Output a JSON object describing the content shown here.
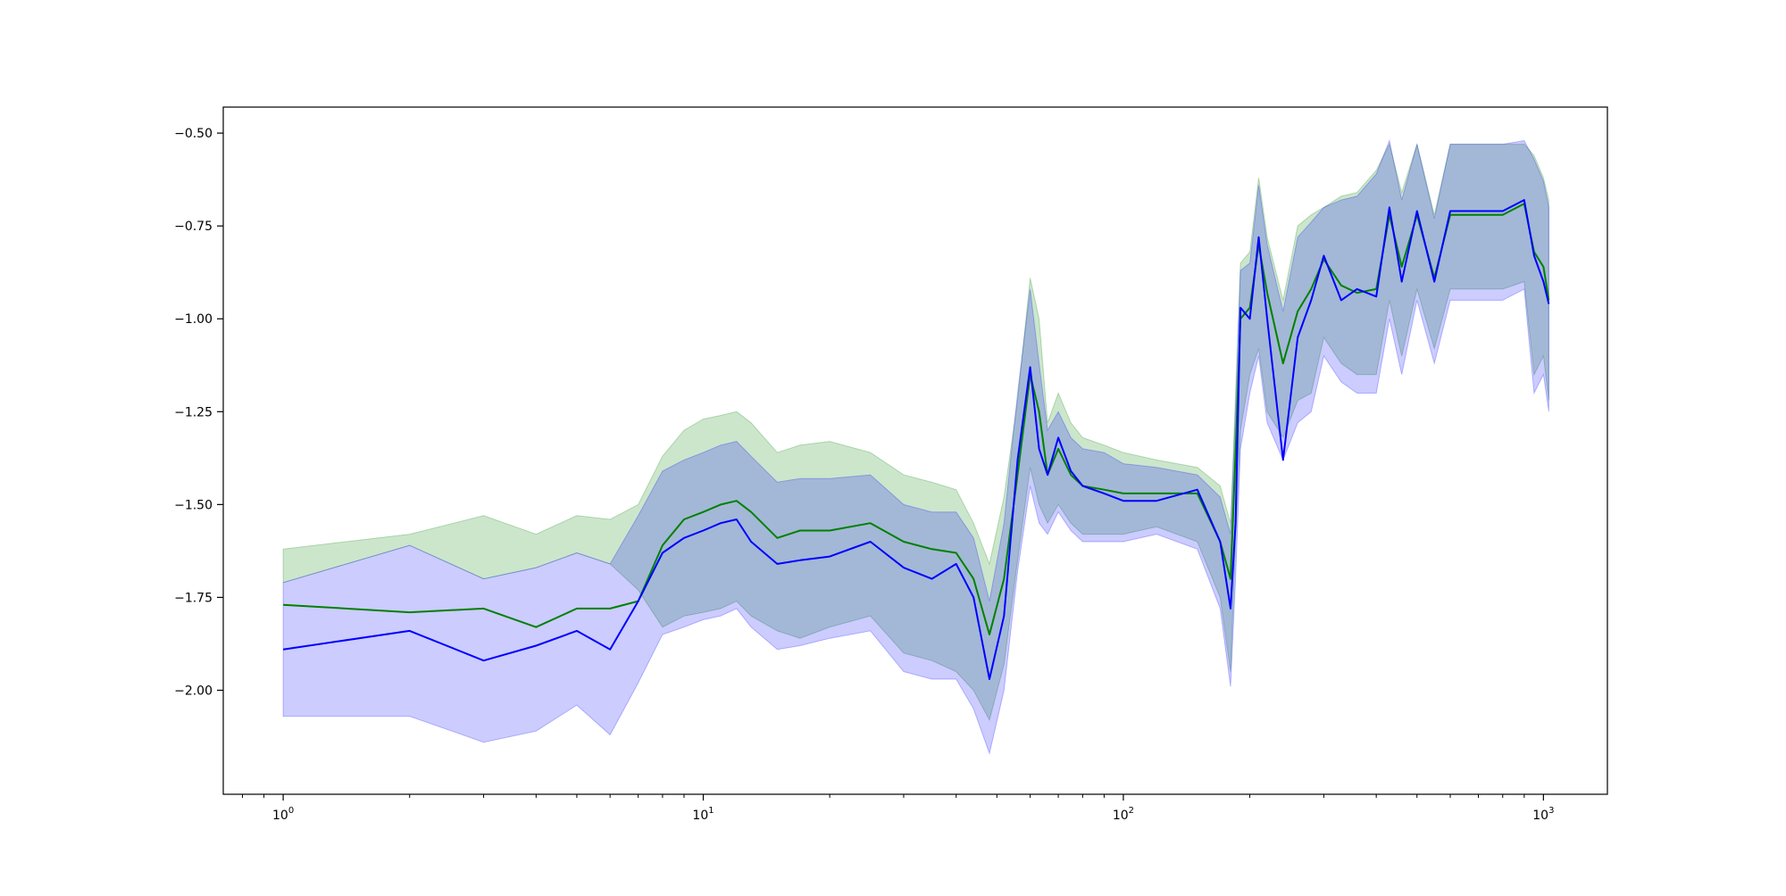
{
  "chart_data": {
    "type": "line",
    "title": "",
    "xlabel": "",
    "ylabel": "",
    "xscale": "log",
    "xlim": [
      0.72,
      1420
    ],
    "ylim": [
      -2.28,
      -0.43
    ],
    "grid": false,
    "legend": "none",
    "x_ticks": [
      {
        "value": 1,
        "base": "10",
        "exp": "0"
      },
      {
        "value": 10,
        "base": "10",
        "exp": "1"
      },
      {
        "value": 100,
        "base": "10",
        "exp": "2"
      },
      {
        "value": 1000,
        "base": "10",
        "exp": "3"
      }
    ],
    "y_ticks": [
      {
        "value": -0.5,
        "label": "−0.50"
      },
      {
        "value": -0.75,
        "label": "−0.75"
      },
      {
        "value": -1.0,
        "label": "−1.00"
      },
      {
        "value": -1.25,
        "label": "−1.25"
      },
      {
        "value": -1.5,
        "label": "−1.50"
      },
      {
        "value": -1.75,
        "label": "−1.75"
      },
      {
        "value": -2.0,
        "label": "−2.00"
      }
    ],
    "series": [
      {
        "color": "#008000",
        "band_color": "#008000",
        "band_opacity": 0.2,
        "x": [
          1,
          2,
          3,
          4,
          5,
          6,
          7,
          8,
          9,
          10,
          11,
          12,
          13,
          15,
          17,
          20,
          25,
          30,
          35,
          40,
          44,
          48,
          52,
          56,
          60,
          63,
          66,
          70,
          75,
          80,
          90,
          100,
          120,
          150,
          170,
          180,
          185,
          190,
          200,
          210,
          220,
          240,
          260,
          280,
          300,
          330,
          360,
          400,
          430,
          460,
          500,
          550,
          600,
          700,
          800,
          900,
          950,
          1000,
          1030
        ],
        "y": [
          -1.77,
          -1.79,
          -1.78,
          -1.83,
          -1.78,
          -1.78,
          -1.76,
          -1.61,
          -1.54,
          -1.52,
          -1.5,
          -1.49,
          -1.52,
          -1.59,
          -1.57,
          -1.57,
          -1.55,
          -1.6,
          -1.62,
          -1.63,
          -1.7,
          -1.85,
          -1.7,
          -1.42,
          -1.15,
          -1.25,
          -1.42,
          -1.35,
          -1.42,
          -1.45,
          -1.46,
          -1.47,
          -1.47,
          -1.47,
          -1.6,
          -1.7,
          -1.36,
          -1.0,
          -0.97,
          -0.8,
          -0.93,
          -1.12,
          -0.98,
          -0.92,
          -0.84,
          -0.91,
          -0.93,
          -0.92,
          -0.72,
          -0.86,
          -0.72,
          -0.89,
          -0.72,
          -0.72,
          -0.72,
          -0.69,
          -0.82,
          -0.86,
          -0.95
        ],
        "upper": [
          -1.62,
          -1.58,
          -1.53,
          -1.58,
          -1.53,
          -1.54,
          -1.5,
          -1.37,
          -1.3,
          -1.27,
          -1.26,
          -1.25,
          -1.28,
          -1.36,
          -1.34,
          -1.33,
          -1.36,
          -1.42,
          -1.44,
          -1.46,
          -1.55,
          -1.66,
          -1.48,
          -1.22,
          -0.89,
          -1.0,
          -1.28,
          -1.2,
          -1.28,
          -1.32,
          -1.34,
          -1.36,
          -1.38,
          -1.4,
          -1.45,
          -1.55,
          -1.2,
          -0.85,
          -0.82,
          -0.62,
          -0.78,
          -0.95,
          -0.75,
          -0.72,
          -0.7,
          -0.67,
          -0.66,
          -0.6,
          -0.53,
          -0.66,
          -0.53,
          -0.72,
          -0.53,
          -0.53,
          -0.53,
          -0.53,
          -0.56,
          -0.62,
          -0.68
        ],
        "lower": [
          -1.71,
          -1.61,
          -1.7,
          -1.67,
          -1.63,
          -1.66,
          -1.73,
          -1.83,
          -1.8,
          -1.79,
          -1.78,
          -1.76,
          -1.8,
          -1.84,
          -1.86,
          -1.83,
          -1.8,
          -1.9,
          -1.92,
          -1.95,
          -2.0,
          -2.08,
          -1.93,
          -1.65,
          -1.4,
          -1.5,
          -1.55,
          -1.5,
          -1.55,
          -1.58,
          -1.58,
          -1.58,
          -1.56,
          -1.6,
          -1.75,
          -1.95,
          -1.6,
          -1.3,
          -1.15,
          -1.08,
          -1.25,
          -1.32,
          -1.22,
          -1.2,
          -1.05,
          -1.12,
          -1.15,
          -1.15,
          -0.95,
          -1.1,
          -0.92,
          -1.08,
          -0.92,
          -0.92,
          -0.92,
          -0.9,
          -1.15,
          -1.1,
          -1.22
        ]
      },
      {
        "color": "#0000ff",
        "band_color": "#0000ff",
        "band_opacity": 0.2,
        "x": [
          1,
          2,
          3,
          4,
          5,
          6,
          7,
          8,
          9,
          10,
          11,
          12,
          13,
          15,
          17,
          20,
          25,
          30,
          35,
          40,
          44,
          48,
          52,
          56,
          60,
          63,
          66,
          70,
          75,
          80,
          90,
          100,
          120,
          150,
          170,
          180,
          185,
          190,
          200,
          210,
          220,
          240,
          260,
          280,
          300,
          330,
          360,
          400,
          430,
          460,
          500,
          550,
          600,
          700,
          800,
          900,
          950,
          1000,
          1030
        ],
        "y": [
          -1.89,
          -1.84,
          -1.92,
          -1.88,
          -1.84,
          -1.89,
          -1.76,
          -1.63,
          -1.59,
          -1.57,
          -1.55,
          -1.54,
          -1.6,
          -1.66,
          -1.65,
          -1.64,
          -1.6,
          -1.67,
          -1.7,
          -1.66,
          -1.75,
          -1.97,
          -1.8,
          -1.38,
          -1.13,
          -1.35,
          -1.42,
          -1.32,
          -1.41,
          -1.45,
          -1.47,
          -1.49,
          -1.49,
          -1.46,
          -1.6,
          -1.78,
          -1.55,
          -0.97,
          -1.0,
          -0.78,
          -1.0,
          -1.38,
          -1.05,
          -0.95,
          -0.83,
          -0.95,
          -0.92,
          -0.94,
          -0.7,
          -0.9,
          -0.71,
          -0.9,
          -0.71,
          -0.71,
          -0.71,
          -0.68,
          -0.83,
          -0.9,
          -0.96
        ],
        "upper": [
          -1.71,
          -1.61,
          -1.7,
          -1.67,
          -1.63,
          -1.66,
          -1.53,
          -1.41,
          -1.38,
          -1.36,
          -1.34,
          -1.33,
          -1.37,
          -1.44,
          -1.43,
          -1.43,
          -1.42,
          -1.5,
          -1.52,
          -1.52,
          -1.59,
          -1.76,
          -1.55,
          -1.2,
          -0.92,
          -1.12,
          -1.3,
          -1.25,
          -1.32,
          -1.35,
          -1.36,
          -1.39,
          -1.4,
          -1.42,
          -1.48,
          -1.58,
          -1.25,
          -0.87,
          -0.85,
          -0.64,
          -0.8,
          -0.98,
          -0.78,
          -0.74,
          -0.7,
          -0.68,
          -0.67,
          -0.61,
          -0.52,
          -0.68,
          -0.53,
          -0.73,
          -0.53,
          -0.53,
          -0.53,
          -0.52,
          -0.57,
          -0.63,
          -0.7
        ],
        "lower": [
          -2.07,
          -2.07,
          -2.14,
          -2.11,
          -2.04,
          -2.12,
          -1.98,
          -1.85,
          -1.83,
          -1.81,
          -1.8,
          -1.78,
          -1.83,
          -1.89,
          -1.88,
          -1.86,
          -1.84,
          -1.95,
          -1.97,
          -1.97,
          -2.05,
          -2.17,
          -2.0,
          -1.68,
          -1.45,
          -1.55,
          -1.58,
          -1.52,
          -1.57,
          -1.6,
          -1.6,
          -1.6,
          -1.58,
          -1.62,
          -1.78,
          -1.99,
          -1.7,
          -1.35,
          -1.2,
          -1.1,
          -1.28,
          -1.38,
          -1.28,
          -1.25,
          -1.1,
          -1.17,
          -1.2,
          -1.2,
          -1.0,
          -1.15,
          -0.95,
          -1.12,
          -0.95,
          -0.95,
          -0.95,
          -0.92,
          -1.2,
          -1.15,
          -1.25
        ]
      }
    ]
  }
}
